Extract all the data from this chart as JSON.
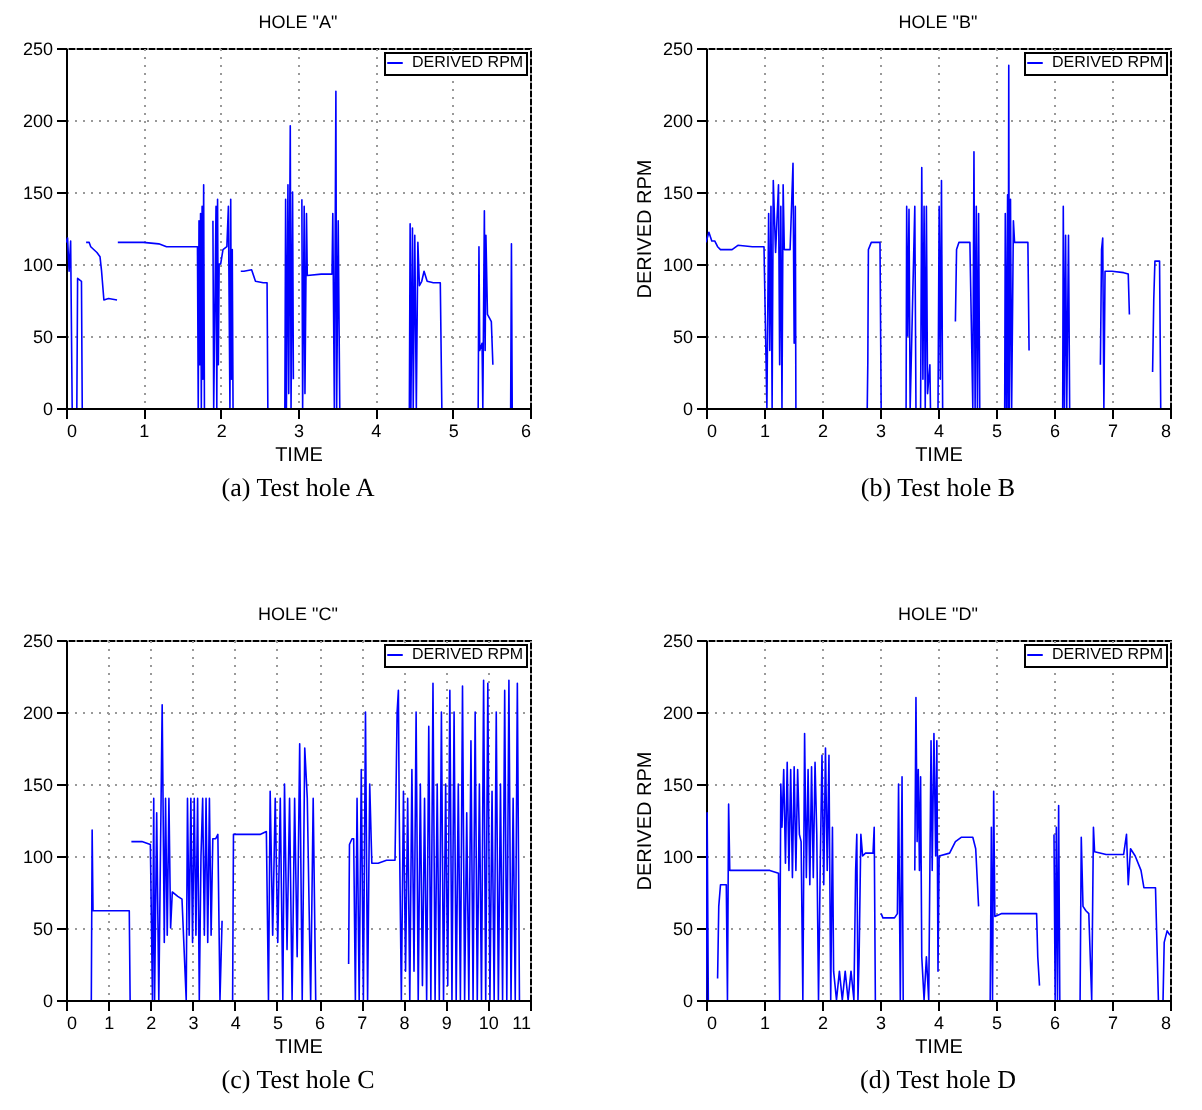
{
  "chart_data": [
    {
      "type": "line",
      "title": "HOLE \"A\"",
      "xlabel": "TIME",
      "annotations": [
        "(a)  Test  hole  A"
      ],
      "legend": "top right",
      "grid": true,
      "xlim": [
        0,
        6
      ],
      "xticks": [
        0,
        1,
        2,
        3,
        4,
        5,
        6
      ],
      "ylim": [
        0,
        250
      ],
      "yticks": [
        0,
        50,
        100,
        150,
        200,
        250
      ],
      "series": [
        {
          "name": "DERIVED RPM",
          "color": "#0000ff",
          "x": [
            0,
            0.02,
            0.04,
            0.06,
            0.08,
            0.1,
            0.14,
            0.15,
            0.2,
            0.21,
            0.23,
            0.26,
            0.3,
            0.32,
            0.4,
            0.44,
            0.46,
            0.49,
            0.55,
            0.66,
            0.665,
            0.67,
            1.0,
            1.2,
            1.3,
            1.7,
            1.71,
            1.72,
            1.73,
            1.74,
            1.75,
            1.76,
            1.77,
            1.78,
            1.79,
            1.85,
            1.9,
            1.91,
            1.94,
            1.95,
            1.96,
            1.97,
            1.98,
            2.0,
            2.03,
            2.08,
            2.1,
            2.12,
            2.13,
            2.14,
            2.15,
            2.16,
            2.2,
            2.26,
            2.3,
            2.4,
            2.45,
            2.55,
            2.6,
            2.61,
            2.7,
            2.83,
            2.84,
            2.85,
            2.87,
            2.88,
            2.9,
            2.91,
            2.93,
            2.94,
            3.0,
            3.05,
            3.06,
            3.08,
            3.09,
            3.11,
            3.12,
            3.3,
            3.44,
            3.45,
            3.47,
            3.49,
            3.5,
            3.52,
            3.54,
            4.0,
            4.44,
            4.45,
            4.46,
            4.48,
            4.49,
            4.51,
            4.53,
            4.55,
            4.57,
            4.6,
            4.63,
            4.67,
            4.75,
            4.84,
            4.86,
            5.0,
            5.33,
            5.34,
            5.35,
            5.38,
            5.39,
            5.41,
            5.42,
            5.43,
            5.45,
            5.48,
            5.5,
            5.52,
            5.6,
            5.75,
            5.76,
            5.77
          ],
          "values": [
            115,
            118,
            95,
            116,
            0,
            null,
            0,
            90,
            88,
            0,
            null,
            115,
            115,
            112,
            108,
            105,
            95,
            75,
            76,
            75,
            null,
            115,
            115,
            114,
            112,
            112,
            0,
            130,
            30,
            135,
            0,
            140,
            20,
            155,
            0,
            null,
            130,
            0,
            140,
            0,
            145,
            30,
            100,
            100,
            110,
            112,
            140,
            0,
            145,
            20,
            110,
            0,
            null,
            95,
            95,
            96,
            88,
            87,
            87,
            0,
            null,
            0,
            145,
            0,
            155,
            10,
            196,
            0,
            150,
            20,
            null,
            145,
            0,
            140,
            10,
            135,
            92,
            93,
            93,
            135,
            0,
            220,
            0,
            130,
            0,
            null,
            0,
            128,
            0,
            125,
            0,
            120,
            0,
            115,
            85,
            88,
            95,
            88,
            87,
            87,
            0,
            null,
            0,
            112,
            40,
            45,
            0,
            137,
            40,
            120,
            65,
            62,
            60,
            30,
            null,
            0,
            114,
            0
          ]
        }
      ]
    },
    {
      "type": "line",
      "title": "HOLE \"B\"",
      "xlabel": "TIME",
      "ylabel": "DERIVED RPM",
      "annotations": [
        "(b)  Test  hole  B"
      ],
      "legend": "top right",
      "grid": true,
      "xlim": [
        0,
        8
      ],
      "xticks": [
        0,
        1,
        2,
        3,
        4,
        5,
        6,
        7,
        8
      ],
      "ylim": [
        0,
        250
      ],
      "yticks": [
        0,
        50,
        100,
        150,
        200,
        250
      ],
      "series": [
        {
          "name": "DERIVED RPM",
          "color": "#0000ff",
          "x": [
            0,
            0.05,
            0.1,
            0.15,
            0.2,
            0.25,
            0.45,
            0.55,
            0.8,
            1.0,
            1.05,
            1.08,
            1.1,
            1.12,
            1.14,
            1.16,
            1.2,
            1.25,
            1.27,
            1.29,
            1.31,
            1.33,
            1.35,
            1.45,
            1.5,
            1.52,
            1.54,
            1.55,
            2.0,
            2.78,
            2.79,
            2.8,
            2.85,
            2.95,
            3.0,
            3.02,
            3.2,
            3.45,
            3.46,
            3.48,
            3.5,
            3.52,
            3.6,
            3.62,
            3.66,
            3.7,
            3.72,
            3.74,
            3.76,
            3.78,
            3.8,
            3.82,
            3.86,
            3.87,
            3.95,
            4.0,
            4.02,
            4.04,
            4.06,
            4.08,
            4.2,
            4.3,
            4.32,
            4.36,
            4.5,
            4.55,
            4.6,
            4.62,
            4.64,
            4.66,
            4.68,
            4.7,
            4.72,
            5.0,
            5.15,
            5.16,
            5.18,
            5.2,
            5.21,
            5.22,
            5.23,
            5.25,
            5.27,
            5.3,
            5.32,
            5.5,
            5.55,
            5.57,
            6.0,
            6.15,
            6.16,
            6.18,
            6.2,
            6.22,
            6.25,
            6.27,
            6.5,
            6.8,
            6.82,
            6.84,
            6.86,
            6.88,
            7.0,
            7.2,
            7.28,
            7.3,
            7.5,
            7.7,
            7.72,
            7.74,
            7.82,
            7.84
          ],
          "values": [
            115,
            122,
            116,
            116,
            112,
            110,
            110,
            113,
            112,
            112,
            0,
            135,
            40,
            140,
            0,
            158,
            108,
            155,
            30,
            140,
            0,
            155,
            110,
            110,
            170,
            45,
            140,
            0,
            null,
            0,
            32,
            110,
            115,
            115,
            115,
            0,
            null,
            0,
            140,
            50,
            138,
            0,
            140,
            0,
            null,
            0,
            167,
            20,
            140,
            0,
            140,
            10,
            30,
            0,
            null,
            0,
            140,
            20,
            158,
            0,
            null,
            60,
            110,
            115,
            115,
            115,
            0,
            178,
            0,
            140,
            0,
            135,
            0,
            null,
            0,
            135,
            0,
            148,
            0,
            238,
            0,
            145,
            0,
            130,
            115,
            115,
            115,
            40,
            null,
            0,
            140,
            0,
            120,
            0,
            120,
            0,
            null,
            30,
            110,
            118,
            0,
            95,
            95,
            94,
            93,
            65,
            null,
            25,
            75,
            102,
            102,
            0
          ]
        }
      ]
    },
    {
      "type": "line",
      "title": "HOLE \"C\"",
      "xlabel": "TIME",
      "annotations": [
        "(c)  Test  hole  C"
      ],
      "legend": "top right",
      "grid": true,
      "xlim": [
        0,
        11
      ],
      "xticks": [
        0,
        1,
        2,
        3,
        4,
        5,
        6,
        7,
        8,
        9,
        10,
        11
      ],
      "ylim": [
        0,
        250
      ],
      "yticks": [
        0,
        50,
        100,
        150,
        200,
        250
      ],
      "series": [
        {
          "name": "DERIVED RPM",
          "color": "#0000ff",
          "x": [
            0.6,
            0.62,
            0.64,
            1.0,
            1.3,
            1.5,
            1.52,
            1.53,
            1.55,
            1.8,
            2.0,
            2.05,
            2.08,
            2.1,
            2.15,
            2.2,
            2.28,
            2.3,
            2.33,
            2.36,
            2.4,
            2.44,
            2.48,
            2.52,
            2.65,
            2.75,
            2.85,
            2.88,
            2.92,
            2.96,
            3.0,
            3.04,
            3.08,
            3.12,
            3.16,
            3.2,
            3.24,
            3.28,
            3.32,
            3.36,
            3.4,
            3.44,
            3.48,
            3.55,
            3.6,
            3.65,
            3.7,
            3.8,
            3.95,
            3.97,
            4.3,
            4.6,
            4.75,
            4.8,
            4.84,
            4.9,
            4.96,
            5.02,
            5.08,
            5.14,
            5.18,
            5.24,
            5.3,
            5.36,
            5.42,
            5.48,
            5.54,
            5.6,
            5.66,
            5.72,
            5.8,
            5.86,
            5.92,
            6.3,
            6.7,
            6.72,
            6.78,
            6.82,
            6.86,
            6.9,
            6.95,
            7.0,
            7.05,
            7.1,
            7.15,
            7.2,
            7.25,
            7.4,
            7.6,
            7.8,
            7.85,
            7.88,
            7.9,
            7.95,
            8.0,
            8.05,
            8.1,
            8.15,
            8.2,
            8.25,
            8.3,
            8.35,
            8.4,
            8.45,
            8.5,
            8.55,
            8.6,
            8.65,
            8.7,
            8.75,
            8.8,
            8.85,
            8.9,
            8.95,
            9.0,
            9.05,
            9.1,
            9.15,
            9.2,
            9.25,
            9.3,
            9.35,
            9.4,
            9.45,
            9.5,
            9.55,
            9.6,
            9.65,
            9.7,
            9.75,
            9.8,
            9.85,
            9.9,
            9.95,
            10.0,
            10.05,
            10.1,
            10.15,
            10.2,
            10.25,
            10.3,
            10.35,
            10.4,
            10.45,
            10.5,
            10.55,
            10.6,
            10.65,
            10.7,
            10.75
          ],
          "values": [
            0,
            118,
            62,
            62,
            62,
            62,
            0,
            null,
            110,
            110,
            108,
            0,
            140,
            0,
            130,
            0,
            205,
            140,
            40,
            140,
            45,
            140,
            50,
            75,
            72,
            70,
            0,
            140,
            45,
            140,
            40,
            140,
            45,
            140,
            0,
            100,
            140,
            45,
            140,
            40,
            140,
            45,
            112,
            112,
            115,
            0,
            55,
            null,
            0,
            115,
            115,
            115,
            117,
            0,
            145,
            45,
            140,
            40,
            140,
            0,
            150,
            35,
            140,
            0,
            140,
            30,
            178,
            0,
            175,
            140,
            0,
            140,
            0,
            null,
            25,
            108,
            112,
            112,
            0,
            140,
            0,
            160,
            0,
            200,
            0,
            150,
            95,
            95,
            97,
            97,
            200,
            215,
            130,
            0,
            145,
            20,
            140,
            0,
            160,
            20,
            200,
            0,
            150,
            10,
            140,
            0,
            190,
            0,
            220,
            0,
            150,
            0,
            200,
            0,
            150,
            10,
            215,
            0,
            200,
            0,
            150,
            0,
            218,
            0,
            130,
            0,
            180,
            0,
            200,
            0,
            150,
            0,
            222,
            0,
            220,
            0,
            145,
            0,
            200,
            0,
            150,
            0,
            215,
            0,
            222,
            0,
            140,
            0,
            220,
            0
          ]
        }
      ]
    },
    {
      "type": "line",
      "title": "HOLE \"D\"",
      "xlabel": "TIME",
      "ylabel": "DERIVED RPM",
      "annotations": [
        "(d)  Test  hole  D"
      ],
      "legend": "top right",
      "grid": true,
      "xlim": [
        0,
        8
      ],
      "xticks": [
        0,
        1,
        2,
        3,
        4,
        5,
        6,
        7,
        8
      ],
      "ylim": [
        0,
        250
      ],
      "yticks": [
        0,
        50,
        100,
        150,
        200,
        250
      ],
      "series": [
        {
          "name": "DERIVED RPM",
          "color": "#0000ff",
          "x": [
            0,
            0.02,
            0.04,
            0.1,
            0.2,
            0.22,
            0.25,
            0.35,
            0.37,
            0.39,
            0.41,
            0.6,
            0.9,
            1.1,
            1.25,
            1.27,
            1.29,
            1.31,
            1.34,
            1.37,
            1.4,
            1.43,
            1.46,
            1.49,
            1.52,
            1.55,
            1.58,
            1.61,
            1.64,
            1.67,
            1.7,
            1.73,
            1.76,
            1.79,
            1.82,
            1.85,
            1.88,
            1.91,
            1.94,
            1.97,
            2.0,
            2.03,
            2.06,
            2.09,
            2.12,
            2.15,
            2.18,
            2.2,
            2.25,
            2.3,
            2.35,
            2.4,
            2.45,
            2.5,
            2.55,
            2.58,
            2.6,
            2.62,
            2.64,
            2.67,
            2.7,
            2.75,
            2.88,
            2.9,
            2.92,
            2.97,
            3.02,
            3.05,
            3.25,
            3.3,
            3.32,
            3.35,
            3.38,
            3.4,
            3.5,
            3.6,
            3.62,
            3.64,
            3.66,
            3.68,
            3.7,
            3.72,
            3.76,
            3.8,
            3.84,
            3.88,
            3.9,
            3.93,
            3.96,
            3.98,
            4.0,
            4.02,
            4.2,
            4.3,
            4.4,
            4.6,
            4.65,
            4.7,
            4.8,
            4.9,
            4.92,
            4.94,
            4.96,
            4.98,
            5.1,
            5.4,
            5.7,
            5.72,
            5.75,
            5.9,
            6.0,
            6.02,
            6.04,
            6.06,
            6.08,
            6.1,
            6.3,
            6.45,
            6.47,
            6.5,
            6.55,
            6.6,
            6.65,
            6.68,
            6.7,
            6.9,
            7.2,
            7.25,
            7.28,
            7.32,
            7.4,
            7.5,
            7.55,
            7.75,
            7.8,
            7.85,
            7.88,
            7.9,
            7.95,
            8.0
          ],
          "values": [
            0,
            130,
            0,
            null,
            15,
            65,
            80,
            80,
            0,
            136,
            90,
            90,
            90,
            90,
            88,
            0,
            150,
            120,
            160,
            95,
            165,
            90,
            160,
            85,
            162,
            90,
            160,
            115,
            110,
            0,
            185,
            85,
            160,
            80,
            162,
            85,
            165,
            115,
            0,
            95,
            170,
            80,
            175,
            90,
            170,
            0,
            120,
            20,
            0,
            20,
            0,
            20,
            0,
            20,
            0,
            90,
            115,
            0,
            30,
            115,
            100,
            102,
            102,
            120,
            0,
            null,
            60,
            57,
            57,
            60,
            150,
            0,
            155,
            0,
            null,
            90,
            210,
            110,
            160,
            90,
            155,
            30,
            0,
            30,
            0,
            180,
            90,
            185,
            100,
            180,
            20,
            100,
            102,
            110,
            113,
            113,
            105,
            65,
            null,
            0,
            120,
            0,
            145,
            58,
            60,
            60,
            60,
            30,
            10,
            null,
            115,
            0,
            120,
            0,
            135,
            0,
            null,
            0,
            113,
            65,
            62,
            60,
            0,
            120,
            103,
            101,
            101,
            115,
            80,
            105,
            100,
            90,
            78,
            78,
            0,
            null,
            0,
            40,
            48,
            45
          ]
        }
      ]
    }
  ]
}
